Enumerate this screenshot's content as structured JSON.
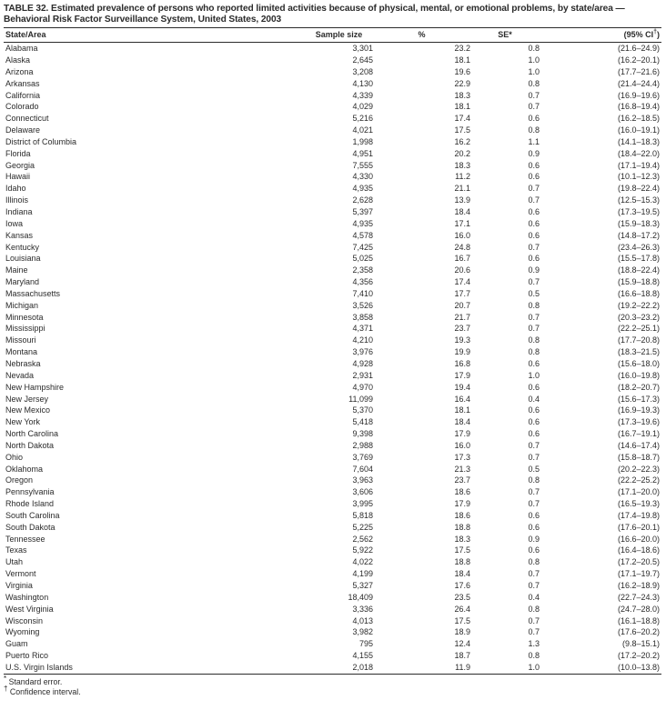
{
  "title": {
    "text": "TABLE 32. Estimated prevalence of persons who reported limited activities because of physical, mental, or emotional problems, by state/area — Behavioral Risk Factor Surveillance System, United States, 2003"
  },
  "table": {
    "headers": {
      "state": "State/Area",
      "sample": "Sample size",
      "pct": "%",
      "se": "SE*",
      "ci_prefix": "(95% CI",
      "ci_sup": "†",
      "ci_suffix": ")"
    },
    "rows": [
      [
        "Alabama",
        "3,301",
        "23.2",
        "0.8",
        "(21.6–24.9)"
      ],
      [
        "Alaska",
        "2,645",
        "18.1",
        "1.0",
        "(16.2–20.1)"
      ],
      [
        "Arizona",
        "3,208",
        "19.6",
        "1.0",
        "(17.7–21.6)"
      ],
      [
        "Arkansas",
        "4,130",
        "22.9",
        "0.8",
        "(21.4–24.4)"
      ],
      [
        "California",
        "4,339",
        "18.3",
        "0.7",
        "(16.9–19.6)"
      ],
      [
        "Colorado",
        "4,029",
        "18.1",
        "0.7",
        "(16.8–19.4)"
      ],
      [
        "Connecticut",
        "5,216",
        "17.4",
        "0.6",
        "(16.2–18.5)"
      ],
      [
        "Delaware",
        "4,021",
        "17.5",
        "0.8",
        "(16.0–19.1)"
      ],
      [
        "District of Columbia",
        "1,998",
        "16.2",
        "1.1",
        "(14.1–18.3)"
      ],
      [
        "Florida",
        "4,951",
        "20.2",
        "0.9",
        "(18.4–22.0)"
      ],
      [
        "Georgia",
        "7,555",
        "18.3",
        "0.6",
        "(17.1–19.4)"
      ],
      [
        "Hawaii",
        "4,330",
        "11.2",
        "0.6",
        "(10.1–12.3)"
      ],
      [
        "Idaho",
        "4,935",
        "21.1",
        "0.7",
        "(19.8–22.4)"
      ],
      [
        "Illinois",
        "2,628",
        "13.9",
        "0.7",
        "(12.5–15.3)"
      ],
      [
        "Indiana",
        "5,397",
        "18.4",
        "0.6",
        "(17.3–19.5)"
      ],
      [
        "Iowa",
        "4,935",
        "17.1",
        "0.6",
        "(15.9–18.3)"
      ],
      [
        "Kansas",
        "4,578",
        "16.0",
        "0.6",
        "(14.8–17.2)"
      ],
      [
        "Kentucky",
        "7,425",
        "24.8",
        "0.7",
        "(23.4–26.3)"
      ],
      [
        "Louisiana",
        "5,025",
        "16.7",
        "0.6",
        "(15.5–17.8)"
      ],
      [
        "Maine",
        "2,358",
        "20.6",
        "0.9",
        "(18.8–22.4)"
      ],
      [
        "Maryland",
        "4,356",
        "17.4",
        "0.7",
        "(15.9–18.8)"
      ],
      [
        "Massachusetts",
        "7,410",
        "17.7",
        "0.5",
        "(16.6–18.8)"
      ],
      [
        "Michigan",
        "3,526",
        "20.7",
        "0.8",
        "(19.2–22.2)"
      ],
      [
        "Minnesota",
        "3,858",
        "21.7",
        "0.7",
        "(20.3–23.2)"
      ],
      [
        "Mississippi",
        "4,371",
        "23.7",
        "0.7",
        "(22.2–25.1)"
      ],
      [
        "Missouri",
        "4,210",
        "19.3",
        "0.8",
        "(17.7–20.8)"
      ],
      [
        "Montana",
        "3,976",
        "19.9",
        "0.8",
        "(18.3–21.5)"
      ],
      [
        "Nebraska",
        "4,928",
        "16.8",
        "0.6",
        "(15.6–18.0)"
      ],
      [
        "Nevada",
        "2,931",
        "17.9",
        "1.0",
        "(16.0–19.8)"
      ],
      [
        "New Hampshire",
        "4,970",
        "19.4",
        "0.6",
        "(18.2–20.7)"
      ],
      [
        "New Jersey",
        "11,099",
        "16.4",
        "0.4",
        "(15.6–17.3)"
      ],
      [
        "New Mexico",
        "5,370",
        "18.1",
        "0.6",
        "(16.9–19.3)"
      ],
      [
        "New York",
        "5,418",
        "18.4",
        "0.6",
        "(17.3–19.6)"
      ],
      [
        "North Carolina",
        "9,398",
        "17.9",
        "0.6",
        "(16.7–19.1)"
      ],
      [
        "North Dakota",
        "2,988",
        "16.0",
        "0.7",
        "(14.6–17.4)"
      ],
      [
        "Ohio",
        "3,769",
        "17.3",
        "0.7",
        "(15.8–18.7)"
      ],
      [
        "Oklahoma",
        "7,604",
        "21.3",
        "0.5",
        "(20.2–22.3)"
      ],
      [
        "Oregon",
        "3,963",
        "23.7",
        "0.8",
        "(22.2–25.2)"
      ],
      [
        "Pennsylvania",
        "3,606",
        "18.6",
        "0.7",
        "(17.1–20.0)"
      ],
      [
        "Rhode Island",
        "3,995",
        "17.9",
        "0.7",
        "(16.5–19.3)"
      ],
      [
        "South Carolina",
        "5,818",
        "18.6",
        "0.6",
        "(17.4–19.8)"
      ],
      [
        "South Dakota",
        "5,225",
        "18.8",
        "0.6",
        "(17.6–20.1)"
      ],
      [
        "Tennessee",
        "2,562",
        "18.3",
        "0.9",
        "(16.6–20.0)"
      ],
      [
        "Texas",
        "5,922",
        "17.5",
        "0.6",
        "(16.4–18.6)"
      ],
      [
        "Utah",
        "4,022",
        "18.8",
        "0.8",
        "(17.2–20.5)"
      ],
      [
        "Vermont",
        "4,199",
        "18.4",
        "0.7",
        "(17.1–19.7)"
      ],
      [
        "Virginia",
        "5,327",
        "17.6",
        "0.7",
        "(16.2–18.9)"
      ],
      [
        "Washington",
        "18,409",
        "23.5",
        "0.4",
        "(22.7–24.3)"
      ],
      [
        "West Virginia",
        "3,336",
        "26.4",
        "0.8",
        "(24.7–28.0)"
      ],
      [
        "Wisconsin",
        "4,013",
        "17.5",
        "0.7",
        "(16.1–18.8)"
      ],
      [
        "Wyoming",
        "3,982",
        "18.9",
        "0.7",
        "(17.6–20.2)"
      ],
      [
        "Guam",
        "795",
        "12.4",
        "1.3",
        "(9.8–15.1)"
      ],
      [
        "Puerto Rico",
        "4,155",
        "18.7",
        "0.8",
        "(17.2–20.2)"
      ],
      [
        "U.S. Virgin Islands",
        "2,018",
        "11.9",
        "1.0",
        "(10.0–13.8)"
      ]
    ]
  },
  "footnotes": [
    {
      "marker": "*",
      "text": "Standard error."
    },
    {
      "marker": "†",
      "text": "Confidence interval."
    }
  ]
}
